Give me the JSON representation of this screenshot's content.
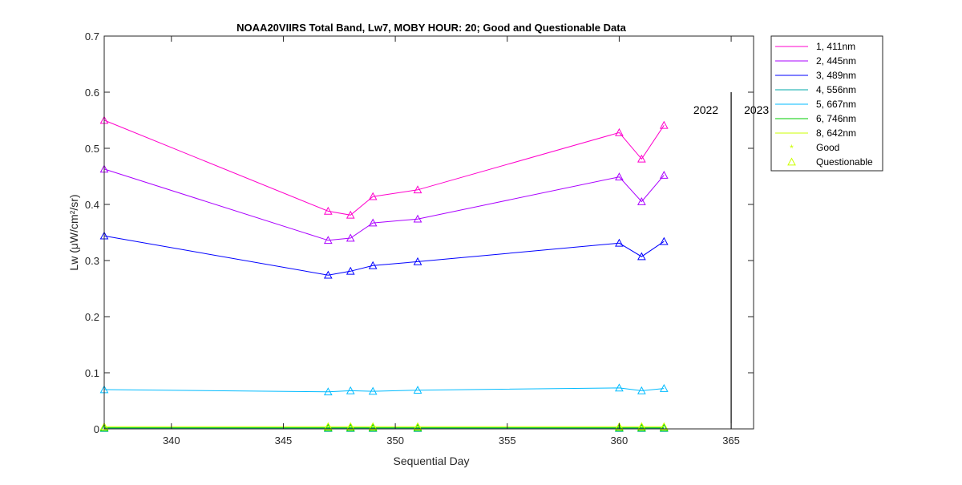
{
  "chart_data": {
    "type": "line",
    "title": "NOAA20VIIRS Total Band,  Lw7, MOBY HOUR: 20;  Good and Questionable Data",
    "xlabel": "Sequential Day",
    "ylabel": "Lw (μW/cm²/sr)",
    "xlim": [
      337,
      366
    ],
    "ylim": [
      0,
      0.7
    ],
    "xticks": [
      "340",
      "345",
      "350",
      "355",
      "360",
      "365"
    ],
    "yticks": [
      "0",
      "0.1",
      "0.2",
      "0.3",
      "0.4",
      "0.5",
      "0.6",
      "0.7"
    ],
    "x": [
      337,
      347,
      348,
      349,
      351,
      360,
      361,
      362
    ],
    "series": [
      {
        "name": "1, 411nm",
        "color": "#ff00cc",
        "values": [
          0.55,
          0.388,
          0.381,
          0.414,
          0.426,
          0.528,
          0.481,
          0.541
        ]
      },
      {
        "name": "2, 445nm",
        "color": "#aa00ff",
        "values": [
          0.463,
          0.336,
          0.34,
          0.367,
          0.374,
          0.449,
          0.405,
          0.452
        ]
      },
      {
        "name": "3, 489nm",
        "color": "#0000ff",
        "values": [
          0.344,
          0.274,
          0.281,
          0.291,
          0.298,
          0.331,
          0.307,
          0.334
        ]
      },
      {
        "name": "4, 556nm",
        "color": "#00aaaa",
        "values": [
          0.001,
          0.001,
          0.001,
          0.001,
          0.001,
          0.001,
          0.001,
          0.001
        ]
      },
      {
        "name": "5, 667nm",
        "color": "#00bbff",
        "values": [
          0.07,
          0.066,
          0.068,
          0.067,
          0.069,
          0.073,
          0.068,
          0.072
        ]
      },
      {
        "name": "6, 746nm",
        "color": "#00cc00",
        "values": [
          0.002,
          0.002,
          0.002,
          0.002,
          0.002,
          0.002,
          0.002,
          0.002
        ]
      },
      {
        "name": "8, 642nm",
        "color": "#ccff00",
        "values": [
          0.004,
          0.004,
          0.004,
          0.004,
          0.004,
          0.004,
          0.004,
          0.004
        ]
      }
    ],
    "legend": {
      "placement": "outside-right",
      "good_label": "Good",
      "questionable_label": "Questionable",
      "marker_color": "#ccff00"
    },
    "year_divider": {
      "x": 365,
      "ylim": [
        0,
        0.6
      ],
      "left_label": "2022",
      "right_label": "2023"
    },
    "grid": false
  }
}
